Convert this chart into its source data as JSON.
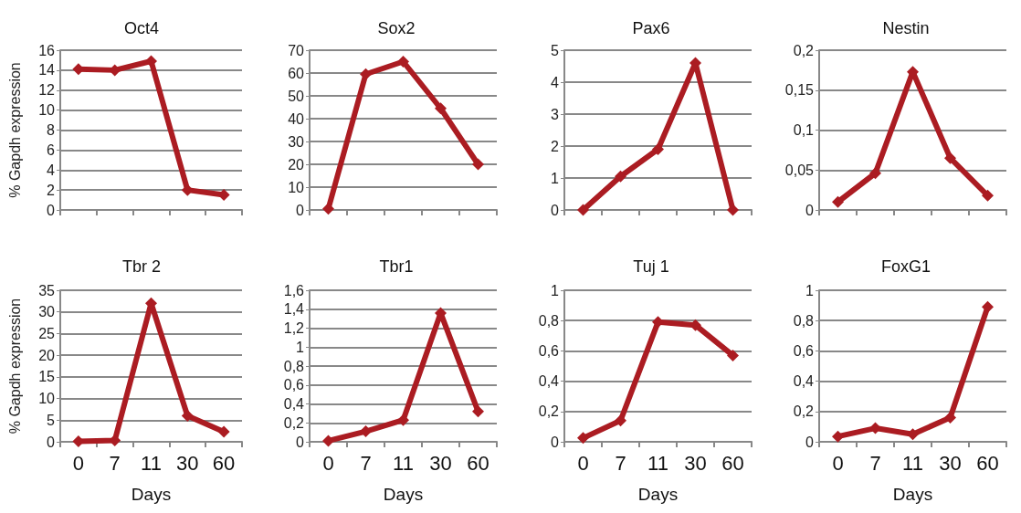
{
  "chart_data": [
    {
      "type": "line",
      "title": "Oct4",
      "ylabel": "% Gapdh expression",
      "categories": [
        "0",
        "7",
        "11",
        "30",
        "60"
      ],
      "tick_labels": "y",
      "series": [
        {
          "color": "#ab1c22",
          "values": [
            14.1,
            14.0,
            14.9,
            2.0,
            1.5
          ]
        }
      ],
      "ylim": [
        0,
        16
      ],
      "yticks": [
        0,
        2,
        4,
        6,
        8,
        10,
        12,
        14,
        16
      ],
      "grid": "y",
      "marker": "diamond"
    },
    {
      "type": "line",
      "title": "Sox2",
      "categories": [
        "0",
        "7",
        "11",
        "30",
        "60"
      ],
      "tick_labels": "y",
      "series": [
        {
          "color": "#ab1c22",
          "values": [
            0.5,
            59.5,
            65,
            44.5,
            20
          ]
        }
      ],
      "ylim": [
        0,
        70
      ],
      "yticks": [
        0,
        10,
        20,
        30,
        40,
        50,
        60,
        70
      ],
      "grid": "y",
      "marker": "diamond"
    },
    {
      "type": "line",
      "title": "Pax6",
      "categories": [
        "0",
        "7",
        "11",
        "30",
        "60"
      ],
      "tick_labels": "y",
      "series": [
        {
          "color": "#ab1c22",
          "values": [
            0,
            1.05,
            1.9,
            4.6,
            0
          ]
        }
      ],
      "ylim": [
        0,
        5
      ],
      "yticks": [
        0,
        1,
        2,
        3,
        4,
        5
      ],
      "grid": "y",
      "marker": "diamond"
    },
    {
      "type": "line",
      "title": "Nestin",
      "categories": [
        "0",
        "7",
        "11",
        "30",
        "60"
      ],
      "tick_labels": "y",
      "series": [
        {
          "color": "#ab1c22",
          "values": [
            0.01,
            0.046,
            0.173,
            0.065,
            0.018
          ]
        }
      ],
      "ylim": [
        0,
        0.2
      ],
      "yticks": [
        0,
        {
          "value": 0.05,
          "label": "0,05"
        },
        {
          "value": 0.1,
          "label": "0,1"
        },
        {
          "value": 0.15,
          "label": "0,15"
        },
        {
          "value": 0.2,
          "label": "0,2"
        }
      ],
      "grid": "y",
      "marker": "diamond"
    },
    {
      "type": "line",
      "title": "Tbr 2",
      "ylabel": "% Gapdh expression",
      "xlabel": "Days",
      "categories": [
        "0",
        "7",
        "11",
        "30",
        "60"
      ],
      "series": [
        {
          "color": "#ab1c22",
          "values": [
            0.1,
            0.3,
            32,
            6,
            2.3
          ]
        }
      ],
      "ylim": [
        0,
        35
      ],
      "yticks": [
        0,
        5,
        10,
        15,
        20,
        25,
        30,
        35
      ],
      "grid": "y",
      "marker": "diamond"
    },
    {
      "type": "line",
      "title": "Tbr1",
      "xlabel": "Days",
      "categories": [
        "0",
        "7",
        "11",
        "30",
        "60"
      ],
      "series": [
        {
          "color": "#ab1c22",
          "values": [
            0.01,
            0.11,
            0.23,
            1.36,
            0.32
          ]
        }
      ],
      "ylim": [
        0,
        1.6
      ],
      "yticks": [
        0,
        {
          "value": 0.2,
          "label": "0,2"
        },
        {
          "value": 0.4,
          "label": "0,4"
        },
        {
          "value": 0.6,
          "label": "0,6"
        },
        {
          "value": 0.8,
          "label": "0,8"
        },
        1,
        {
          "value": 1.2,
          "label": "1,2"
        },
        {
          "value": 1.4,
          "label": "1,4"
        },
        {
          "value": 1.6,
          "label": "1,6"
        }
      ],
      "grid": "y",
      "marker": "diamond"
    },
    {
      "type": "line",
      "title": "Tuj 1",
      "xlabel": "Days",
      "categories": [
        "0",
        "7",
        "11",
        "30",
        "60"
      ],
      "series": [
        {
          "color": "#ab1c22",
          "values": [
            0.025,
            0.14,
            0.79,
            0.77,
            0.57
          ]
        }
      ],
      "ylim": [
        0,
        1
      ],
      "yticks": [
        0,
        {
          "value": 0.2,
          "label": "0,2"
        },
        {
          "value": 0.4,
          "label": "0,4"
        },
        {
          "value": 0.6,
          "label": "0,6"
        },
        {
          "value": 0.8,
          "label": "0,8"
        },
        1
      ],
      "grid": "y",
      "marker": "diamond"
    },
    {
      "type": "line",
      "title": "FoxG1",
      "xlabel": "Days",
      "categories": [
        "0",
        "7",
        "11",
        "30",
        "60"
      ],
      "series": [
        {
          "color": "#ab1c22",
          "values": [
            0.035,
            0.09,
            0.05,
            0.16,
            0.89
          ]
        }
      ],
      "ylim": [
        0,
        1
      ],
      "yticks": [
        0,
        {
          "value": 0.2,
          "label": "0,2"
        },
        {
          "value": 0.4,
          "label": "0,4"
        },
        {
          "value": 0.6,
          "label": "0,6"
        },
        {
          "value": 0.8,
          "label": "0,8"
        },
        1
      ],
      "grid": "y",
      "marker": "diamond"
    }
  ]
}
